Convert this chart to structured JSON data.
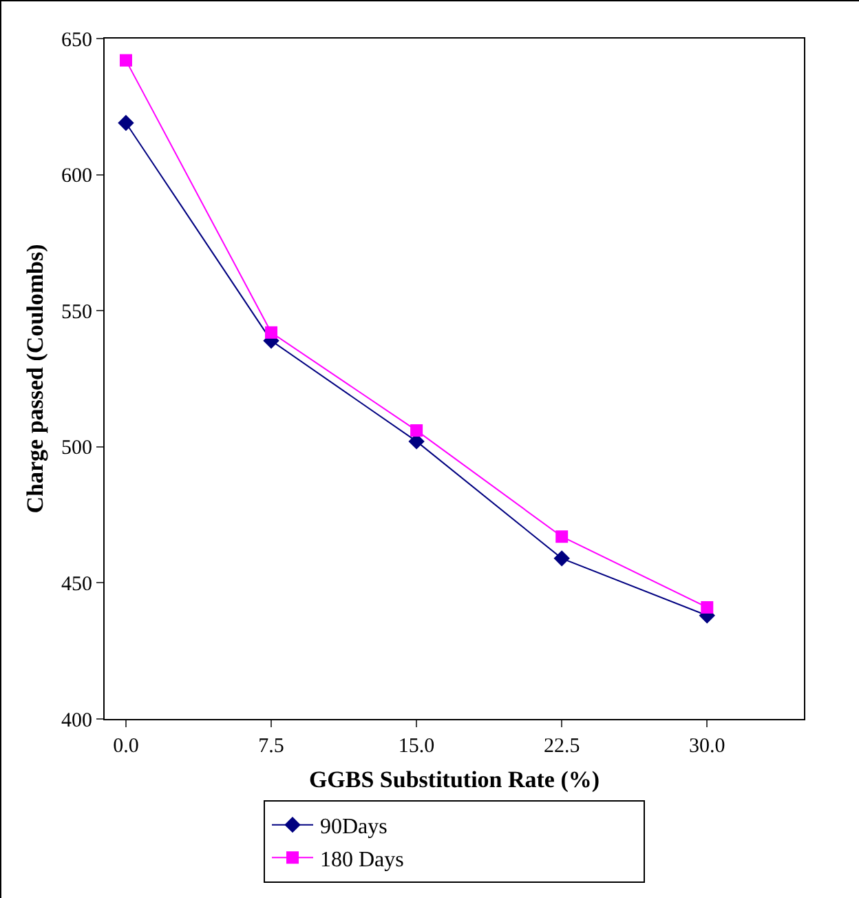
{
  "chart_data": {
    "type": "line",
    "xlabel": "GGBS Substitution Rate (%)",
    "ylabel": "Charge passed (Coulombs)",
    "x": [
      0,
      7.5,
      15,
      22.5,
      30
    ],
    "series": [
      {
        "name": "90Days",
        "color": "#000080",
        "marker": "diamond",
        "values": [
          619,
          539,
          502,
          459,
          438
        ]
      },
      {
        "name": "180 Days",
        "color": "#ff00ff",
        "marker": "square",
        "values": [
          642,
          542,
          506,
          467,
          441
        ]
      }
    ],
    "xlim": [
      -1.1,
      35
    ],
    "xticks": [
      {
        "value": 0,
        "label": "0.0"
      },
      {
        "value": 7.5,
        "label": "7.5"
      },
      {
        "value": 15,
        "label": "15.0"
      },
      {
        "value": 22.5,
        "label": "22.5"
      },
      {
        "value": 30,
        "label": "30.0"
      }
    ],
    "ylim": [
      400,
      650
    ],
    "yticks": [
      400,
      450,
      500,
      550,
      600,
      650
    ],
    "grid": false,
    "legend": "bottom",
    "line_style": "solid"
  }
}
